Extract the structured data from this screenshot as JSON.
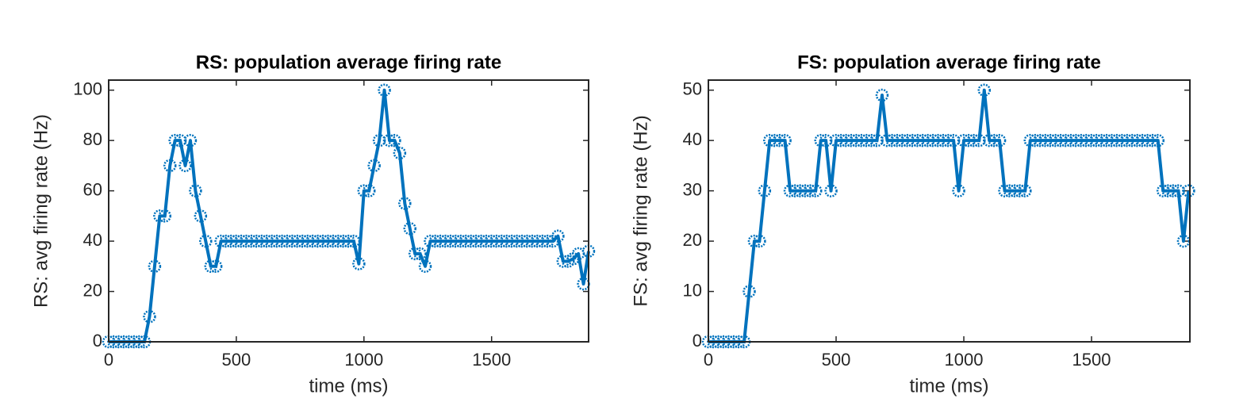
{
  "chart_data": [
    {
      "type": "line",
      "title": "RS: population average firing rate",
      "xlabel": "time (ms)",
      "ylabel": "RS: avg firing rate (Hz)",
      "x": [
        0,
        20,
        40,
        60,
        80,
        100,
        120,
        140,
        160,
        180,
        200,
        220,
        240,
        260,
        280,
        300,
        320,
        340,
        360,
        380,
        400,
        420,
        440,
        460,
        480,
        500,
        520,
        540,
        560,
        580,
        600,
        620,
        640,
        660,
        680,
        700,
        720,
        740,
        760,
        780,
        800,
        820,
        840,
        860,
        880,
        900,
        920,
        940,
        960,
        980,
        1000,
        1020,
        1040,
        1060,
        1080,
        1100,
        1120,
        1140,
        1160,
        1180,
        1200,
        1220,
        1240,
        1260,
        1280,
        1300,
        1320,
        1340,
        1360,
        1380,
        1400,
        1420,
        1440,
        1460,
        1480,
        1500,
        1520,
        1540,
        1560,
        1580,
        1600,
        1620,
        1640,
        1660,
        1680,
        1700,
        1720,
        1740,
        1760,
        1780,
        1800,
        1820,
        1840,
        1860,
        1880
      ],
      "series": [
        {
          "color": "#0072bd",
          "values": [
            0,
            0,
            0,
            0,
            0,
            0,
            0,
            0,
            10,
            30,
            50,
            50,
            70,
            80,
            80,
            70,
            80,
            60,
            50,
            40,
            30,
            30,
            40,
            40,
            40,
            40,
            40,
            40,
            40,
            40,
            40,
            40,
            40,
            40,
            40,
            40,
            40,
            40,
            40,
            40,
            40,
            40,
            40,
            40,
            40,
            40,
            40,
            40,
            40,
            31,
            60,
            60,
            70,
            80,
            100,
            80,
            80,
            75,
            55,
            45,
            35,
            35,
            30,
            40,
            40,
            40,
            40,
            40,
            40,
            40,
            40,
            40,
            40,
            40,
            40,
            40,
            40,
            40,
            40,
            40,
            40,
            40,
            40,
            40,
            40,
            40,
            40,
            40,
            42,
            32,
            32,
            33,
            35,
            23,
            36
          ]
        }
      ],
      "xlim": [
        0,
        1880
      ],
      "ylim": [
        0,
        104
      ],
      "xticks": [
        0,
        500,
        1000,
        1500
      ],
      "yticks": [
        0,
        20,
        40,
        60,
        80,
        100
      ]
    },
    {
      "type": "line",
      "title": "FS: population average firing rate",
      "xlabel": "time (ms)",
      "ylabel": "FS: avg firing rate (Hz)",
      "x": [
        0,
        20,
        40,
        60,
        80,
        100,
        120,
        140,
        160,
        180,
        200,
        220,
        240,
        260,
        280,
        300,
        320,
        340,
        360,
        380,
        400,
        420,
        440,
        460,
        480,
        500,
        520,
        540,
        560,
        580,
        600,
        620,
        640,
        660,
        680,
        700,
        720,
        740,
        760,
        780,
        800,
        820,
        840,
        860,
        880,
        900,
        920,
        940,
        960,
        980,
        1000,
        1020,
        1040,
        1060,
        1080,
        1100,
        1120,
        1140,
        1160,
        1180,
        1200,
        1220,
        1240,
        1260,
        1280,
        1300,
        1320,
        1340,
        1360,
        1380,
        1400,
        1420,
        1440,
        1460,
        1480,
        1500,
        1520,
        1540,
        1560,
        1580,
        1600,
        1620,
        1640,
        1660,
        1680,
        1700,
        1720,
        1740,
        1760,
        1780,
        1800,
        1820,
        1840,
        1860,
        1880
      ],
      "series": [
        {
          "color": "#0072bd",
          "values": [
            0,
            0,
            0,
            0,
            0,
            0,
            0,
            0,
            10,
            20,
            20,
            30,
            40,
            40,
            40,
            40,
            30,
            30,
            30,
            30,
            30,
            30,
            40,
            40,
            30,
            40,
            40,
            40,
            40,
            40,
            40,
            40,
            40,
            40,
            49,
            40,
            40,
            40,
            40,
            40,
            40,
            40,
            40,
            40,
            40,
            40,
            40,
            40,
            40,
            30,
            40,
            40,
            40,
            40,
            50,
            40,
            40,
            40,
            30,
            30,
            30,
            30,
            30,
            40,
            40,
            40,
            40,
            40,
            40,
            40,
            40,
            40,
            40,
            40,
            40,
            40,
            40,
            40,
            40,
            40,
            40,
            40,
            40,
            40,
            40,
            40,
            40,
            40,
            40,
            30,
            30,
            30,
            30,
            20,
            30
          ]
        }
      ],
      "xlim": [
        0,
        1885
      ],
      "ylim": [
        0,
        52
      ],
      "xticks": [
        0,
        500,
        1000,
        1500
      ],
      "yticks": [
        0,
        10,
        20,
        30,
        40,
        50
      ]
    }
  ]
}
